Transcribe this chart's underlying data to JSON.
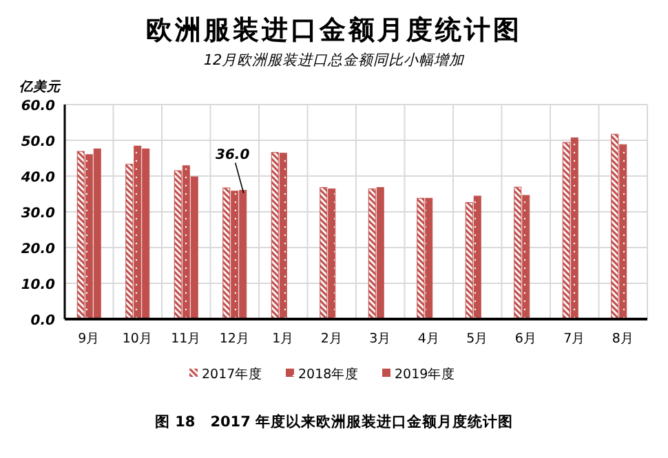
{
  "chart_data": {
    "type": "bar",
    "title": "欧洲服装进口金额月度统计图",
    "subtitle": "12月欧洲服装进口总金额同比小幅增加",
    "ylabel": "亿美元",
    "categories": [
      "9月",
      "10月",
      "11月",
      "12月",
      "1月",
      "2月",
      "3月",
      "4月",
      "5月",
      "6月",
      "7月",
      "8月"
    ],
    "series": [
      {
        "name": "2017年度",
        "color": "#c0504d",
        "values": [
          46.9,
          43.3,
          41.5,
          36.7,
          46.6,
          36.8,
          36.4,
          33.8,
          32.6,
          36.9,
          49.4,
          51.7
        ]
      },
      {
        "name": "2018年度",
        "color": "#c0504d",
        "values": [
          46.0,
          48.4,
          42.9,
          35.8,
          46.4,
          36.4,
          36.8,
          33.8,
          34.4,
          34.6,
          50.7,
          48.8
        ]
      },
      {
        "name": "2019年度",
        "color": "#c0504d",
        "values": [
          47.6,
          47.6,
          39.8,
          36.0,
          null,
          null,
          null,
          null,
          null,
          null,
          null,
          null
        ],
        "value_labels": [
          null,
          null,
          null,
          "36.0",
          null,
          null,
          null,
          null,
          null,
          null,
          null,
          null
        ]
      }
    ],
    "ylim": [
      0,
      60
    ],
    "yticks": [
      {
        "value": 0,
        "label": "0.0"
      },
      {
        "value": 10,
        "label": "10.0"
      },
      {
        "value": 20,
        "label": "20.0"
      },
      {
        "value": 30,
        "label": "30.0"
      },
      {
        "value": 40,
        "label": "40.0"
      },
      {
        "value": 50,
        "label": "50.0"
      },
      {
        "value": 60,
        "label": "60.0"
      }
    ],
    "grid": true,
    "legend": "bottom",
    "annotations": [
      "图 18　2017 年度以来欧洲服装进口金额月度统计图"
    ]
  }
}
